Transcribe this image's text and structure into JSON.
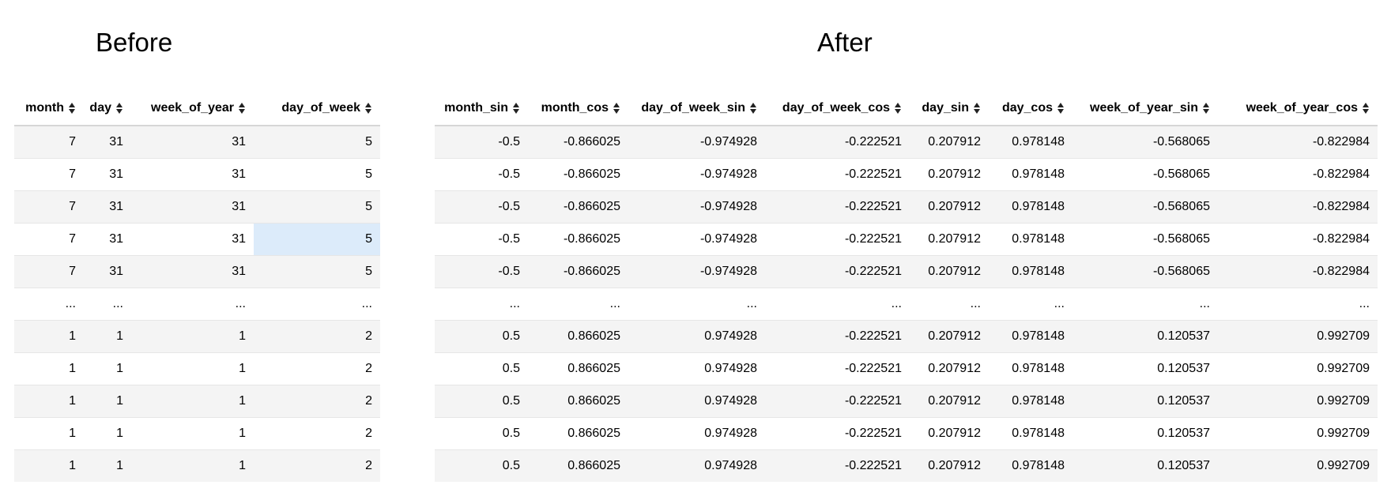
{
  "before": {
    "title": "Before",
    "columns": [
      "month",
      "day",
      "week_of_year",
      "day_of_week"
    ],
    "rows": [
      [
        "7",
        "31",
        "31",
        "5"
      ],
      [
        "7",
        "31",
        "31",
        "5"
      ],
      [
        "7",
        "31",
        "31",
        "5"
      ],
      [
        "7",
        "31",
        "31",
        "5"
      ],
      [
        "7",
        "31",
        "31",
        "5"
      ],
      [
        "...",
        "...",
        "...",
        "..."
      ],
      [
        "1",
        "1",
        "1",
        "2"
      ],
      [
        "1",
        "1",
        "1",
        "2"
      ],
      [
        "1",
        "1",
        "1",
        "2"
      ],
      [
        "1",
        "1",
        "1",
        "2"
      ],
      [
        "1",
        "1",
        "1",
        "2"
      ]
    ],
    "selected_cell": {
      "row": 3,
      "col": 3
    }
  },
  "after": {
    "title": "After",
    "columns": [
      "month_sin",
      "month_cos",
      "day_of_week_sin",
      "day_of_week_cos",
      "day_sin",
      "day_cos",
      "week_of_year_sin",
      "week_of_year_cos"
    ],
    "rows": [
      [
        "-0.5",
        "-0.866025",
        "-0.974928",
        "-0.222521",
        "0.207912",
        "0.978148",
        "-0.568065",
        "-0.822984"
      ],
      [
        "-0.5",
        "-0.866025",
        "-0.974928",
        "-0.222521",
        "0.207912",
        "0.978148",
        "-0.568065",
        "-0.822984"
      ],
      [
        "-0.5",
        "-0.866025",
        "-0.974928",
        "-0.222521",
        "0.207912",
        "0.978148",
        "-0.568065",
        "-0.822984"
      ],
      [
        "-0.5",
        "-0.866025",
        "-0.974928",
        "-0.222521",
        "0.207912",
        "0.978148",
        "-0.568065",
        "-0.822984"
      ],
      [
        "-0.5",
        "-0.866025",
        "-0.974928",
        "-0.222521",
        "0.207912",
        "0.978148",
        "-0.568065",
        "-0.822984"
      ],
      [
        "...",
        "...",
        "...",
        "...",
        "...",
        "...",
        "...",
        "..."
      ],
      [
        "0.5",
        "0.866025",
        "0.974928",
        "-0.222521",
        "0.207912",
        "0.978148",
        "0.120537",
        "0.992709"
      ],
      [
        "0.5",
        "0.866025",
        "0.974928",
        "-0.222521",
        "0.207912",
        "0.978148",
        "0.120537",
        "0.992709"
      ],
      [
        "0.5",
        "0.866025",
        "0.974928",
        "-0.222521",
        "0.207912",
        "0.978148",
        "0.120537",
        "0.992709"
      ],
      [
        "0.5",
        "0.866025",
        "0.974928",
        "-0.222521",
        "0.207912",
        "0.978148",
        "0.120537",
        "0.992709"
      ],
      [
        "0.5",
        "0.866025",
        "0.974928",
        "-0.222521",
        "0.207912",
        "0.978148",
        "0.120537",
        "0.992709"
      ]
    ]
  },
  "icons": {
    "sort": "sort-icon"
  },
  "colors": {
    "row_stripe": "#f4f4f4",
    "selected_cell": "#dcebfa",
    "header_border": "#d6d6d6"
  }
}
